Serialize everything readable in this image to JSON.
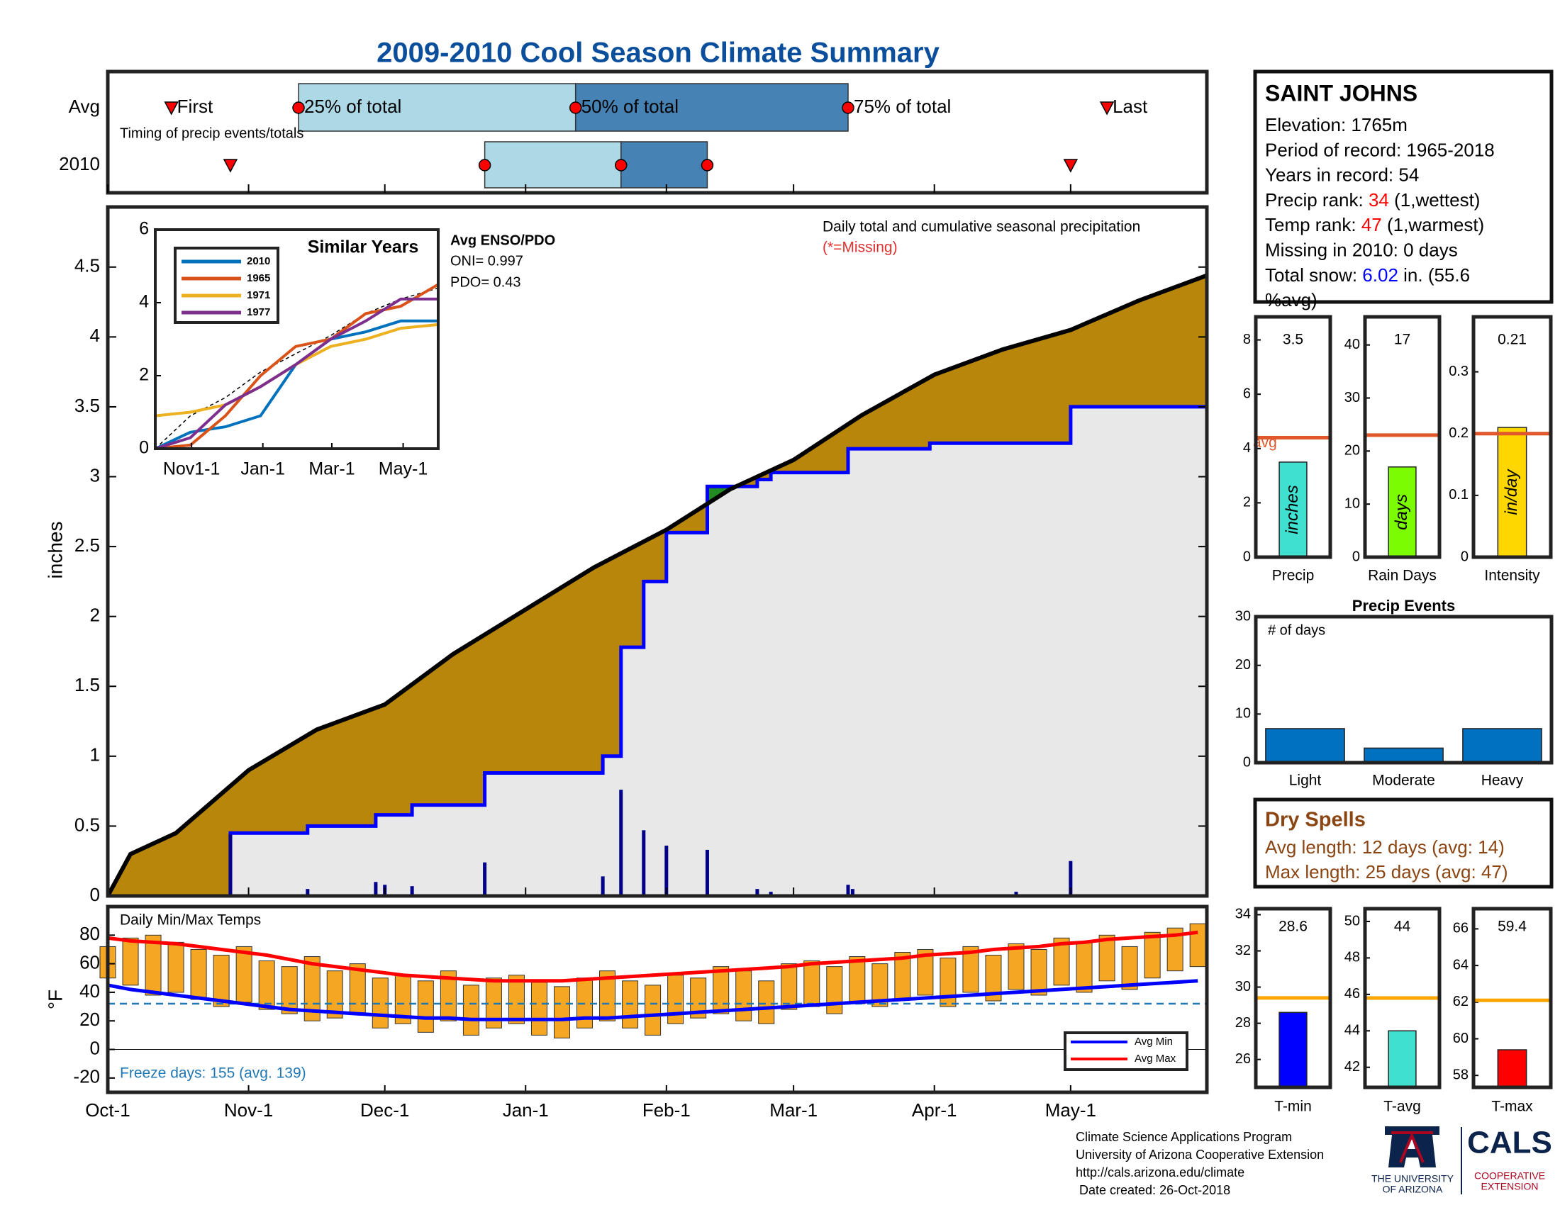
{
  "title": "2009-2010 Cool Season Climate Summary",
  "chart_data": [
    {
      "type": "timing",
      "note": "Timing of precip events/totals",
      "xlim": [
        0,
        242
      ],
      "labels": {
        "first": "First",
        "p25": "25% of total",
        "p50": "50% of total",
        "p75": "75% of total",
        "last": "Last"
      },
      "colors": [
        "#add8e6",
        "#4682b4"
      ],
      "marker_color": "#ff0000",
      "rows": [
        {
          "name": "Avg",
          "first": 14,
          "p25": 42,
          "p50": 103,
          "p75": 163,
          "last": 220
        },
        {
          "name": "2010",
          "first": 27,
          "p25": 83,
          "p50": 113,
          "p75": 132,
          "last": 212
        }
      ]
    },
    {
      "type": "area",
      "title": "Daily total and cumulative seasonal precipitation",
      "note": "(*=Missing)",
      "ylabel": "inches",
      "xlim": [
        0,
        242
      ],
      "ylim": [
        0,
        4.93
      ],
      "yticks": [
        0,
        0.5,
        1,
        1.5,
        2,
        2.5,
        3,
        3.5,
        4,
        4.5
      ],
      "enso": {
        "title": "Avg ENSO/PDO",
        "oni": "ONI= 0.997",
        "pdo": "PDO= 0.43"
      },
      "avg_cumulative": {
        "color": "#b8860b",
        "x": [
          0,
          5,
          15,
          31,
          46,
          61,
          76,
          92,
          107,
          123,
          137,
          151,
          166,
          182,
          197,
          212,
          227,
          242
        ],
        "values": [
          0,
          0.3,
          0.45,
          0.9,
          1.19,
          1.37,
          1.73,
          2.05,
          2.35,
          2.62,
          2.91,
          3.12,
          3.44,
          3.73,
          3.91,
          4.05,
          4.26,
          4.44
        ]
      },
      "cumulative_2010": {
        "color": "#e8e8e8",
        "line_color": "#0000ff",
        "excess_color": "#228b22",
        "x": [
          0,
          27,
          44,
          59,
          67,
          83,
          109,
          113,
          118,
          123,
          132,
          143,
          146,
          163,
          181,
          212
        ],
        "values": [
          0,
          0.45,
          0.5,
          0.58,
          0.65,
          0.88,
          1.0,
          1.78,
          2.25,
          2.6,
          2.93,
          2.98,
          3.03,
          3.2,
          3.24,
          3.5
        ]
      },
      "daily": {
        "color": "#00008b",
        "x": [
          27,
          44,
          59,
          61,
          67,
          83,
          109,
          113,
          118,
          123,
          132,
          143,
          146,
          163,
          164,
          200,
          212
        ],
        "values": [
          0.44,
          0.05,
          0.1,
          0.08,
          0.07,
          0.24,
          0.14,
          0.76,
          0.47,
          0.36,
          0.33,
          0.05,
          0.03,
          0.08,
          0.05,
          0.03,
          0.25
        ]
      }
    },
    {
      "type": "line",
      "title": "Similar Years",
      "xlim": [
        0,
        242
      ],
      "ylim": [
        0,
        6
      ],
      "yticks": [
        0,
        2,
        4,
        6
      ],
      "xticks": [
        {
          "value": 31,
          "label": "Nov1-1"
        },
        {
          "value": 92,
          "label": "Jan-1"
        },
        {
          "value": 151,
          "label": "Mar-1"
        },
        {
          "value": 212,
          "label": "May-1"
        }
      ],
      "x": [
        0,
        30,
        60,
        90,
        120,
        150,
        180,
        210,
        242
      ],
      "average": {
        "color": "#000000",
        "values": [
          0,
          0.9,
          1.4,
          2.1,
          2.6,
          3.1,
          3.7,
          4.1,
          4.4
        ]
      },
      "series": [
        {
          "name": "2010",
          "color": "#0072bd",
          "values": [
            0,
            0.45,
            0.6,
            0.9,
            2.3,
            3.0,
            3.2,
            3.5,
            3.5
          ]
        },
        {
          "name": "1965",
          "color": "#d95319",
          "values": [
            0,
            0.1,
            0.9,
            2.0,
            2.8,
            3.0,
            3.7,
            3.9,
            4.5
          ]
        },
        {
          "name": "1971",
          "color": "#edb120",
          "values": [
            0.9,
            1.0,
            1.2,
            1.7,
            2.3,
            2.8,
            3.0,
            3.3,
            3.4
          ]
        },
        {
          "name": "1977",
          "color": "#7e2f8e",
          "values": [
            0,
            0.3,
            1.2,
            1.7,
            2.3,
            3.0,
            3.5,
            4.1,
            4.1
          ]
        }
      ]
    },
    {
      "type": "range_bar",
      "title": "Daily Min/Max Temps",
      "ylabel": "°F",
      "note": "Freeze days: 155 (avg. 139)",
      "xlim": [
        0,
        242
      ],
      "ylim": [
        -30,
        100
      ],
      "yticks": [
        -20,
        0,
        20,
        40,
        60,
        80
      ],
      "freeze": 32,
      "color": "#f5a623",
      "xticks": [
        {
          "value": 0,
          "label": "Oct-1"
        },
        {
          "value": 31,
          "label": "Nov-1"
        },
        {
          "value": 61,
          "label": "Dec-1"
        },
        {
          "value": 92,
          "label": "Jan-1"
        },
        {
          "value": 123,
          "label": "Feb-1"
        },
        {
          "value": 151,
          "label": "Mar-1"
        },
        {
          "value": 182,
          "label": "Apr-1"
        },
        {
          "value": 212,
          "label": "May-1"
        }
      ],
      "x": [
        0,
        5,
        10,
        15,
        20,
        25,
        30,
        35,
        40,
        45,
        50,
        55,
        60,
        65,
        70,
        75,
        80,
        85,
        90,
        95,
        100,
        105,
        110,
        115,
        120,
        125,
        130,
        135,
        140,
        145,
        150,
        155,
        160,
        165,
        170,
        175,
        180,
        185,
        190,
        195,
        200,
        205,
        210,
        215,
        220,
        225,
        230,
        235,
        240
      ],
      "max": [
        72,
        78,
        80,
        75,
        70,
        66,
        72,
        62,
        58,
        65,
        55,
        60,
        50,
        52,
        48,
        55,
        45,
        50,
        52,
        47,
        44,
        50,
        55,
        48,
        45,
        52,
        50,
        58,
        55,
        48,
        60,
        62,
        58,
        65,
        60,
        68,
        70,
        64,
        72,
        66,
        74,
        70,
        78,
        75,
        80,
        72,
        82,
        85,
        88
      ],
      "min": [
        50,
        45,
        38,
        40,
        35,
        30,
        33,
        28,
        25,
        20,
        22,
        25,
        15,
        18,
        12,
        20,
        10,
        15,
        18,
        10,
        8,
        15,
        20,
        15,
        10,
        18,
        22,
        25,
        20,
        18,
        28,
        30,
        25,
        32,
        30,
        35,
        38,
        30,
        40,
        34,
        42,
        38,
        45,
        40,
        48,
        42,
        50,
        55,
        58
      ],
      "series": [
        {
          "name": "Avg Min",
          "color": "#0000ff",
          "values": [
            45,
            42,
            40,
            38,
            36,
            34,
            32,
            30,
            28,
            27,
            26,
            25,
            24,
            23,
            22,
            22,
            21,
            21,
            21,
            21,
            21,
            22,
            22,
            23,
            24,
            25,
            26,
            27,
            28,
            29,
            30,
            31,
            32,
            33,
            34,
            35,
            36,
            37,
            38,
            39,
            40,
            41,
            42,
            43,
            44,
            45,
            46,
            47,
            48
          ]
        },
        {
          "name": "Avg Max",
          "color": "#ff0000",
          "values": [
            78,
            76,
            75,
            74,
            72,
            70,
            68,
            66,
            63,
            60,
            58,
            56,
            54,
            52,
            51,
            50,
            49,
            48,
            48,
            48,
            48,
            49,
            50,
            51,
            52,
            53,
            54,
            55,
            56,
            57,
            58,
            60,
            61,
            62,
            63,
            64,
            66,
            67,
            68,
            70,
            71,
            72,
            74,
            75,
            77,
            78,
            79,
            80,
            82
          ]
        }
      ]
    },
    {
      "type": "bar",
      "categories": [
        "Precip"
      ],
      "values": [
        3.5
      ],
      "bar_label": "inches",
      "avg": 4.4,
      "avg_label": "avg",
      "color": "#40e0d0",
      "avg_color": "#e0572a",
      "ylim": [
        0,
        8.85
      ],
      "yticks": [
        0,
        2,
        4,
        6,
        8
      ]
    },
    {
      "type": "bar",
      "categories": [
        "Rain Days"
      ],
      "values": [
        17
      ],
      "bar_label": "days",
      "avg": 23,
      "color": "#7cfc00",
      "avg_color": "#e0572a",
      "ylim": [
        0,
        45.3
      ],
      "yticks": [
        0,
        10,
        20,
        30,
        40
      ]
    },
    {
      "type": "bar",
      "categories": [
        "Intensity"
      ],
      "values": [
        0.21
      ],
      "bar_label": "in/day",
      "avg": 0.2,
      "color": "#ffd700",
      "avg_color": "#e0572a",
      "ylim": [
        0,
        0.389
      ],
      "yticks": [
        0,
        0.1,
        0.2,
        0.3
      ]
    },
    {
      "type": "bar",
      "title": "Precip Events",
      "note": "# of days",
      "categories": [
        "Light",
        "Moderate",
        "Heavy"
      ],
      "values": [
        7,
        3,
        7
      ],
      "color": "#0070c0",
      "ylim": [
        0,
        30
      ],
      "yticks": [
        0,
        10,
        20,
        30
      ]
    },
    {
      "type": "bar",
      "categories": [
        "T-min"
      ],
      "values": [
        28.6
      ],
      "avg": 29.4,
      "color": "#0000ff",
      "avg_color": "#ffa500",
      "ylim": [
        24.46,
        34.33
      ],
      "yticks": [
        26,
        28,
        30,
        32,
        34
      ]
    },
    {
      "type": "bar",
      "categories": [
        "T-avg"
      ],
      "values": [
        44
      ],
      "avg": 45.8,
      "color": "#40e0d0",
      "avg_color": "#ffa500",
      "ylim": [
        40.9,
        50.7
      ],
      "yticks": [
        42,
        44,
        46,
        48,
        50
      ]
    },
    {
      "type": "bar",
      "categories": [
        "T-max"
      ],
      "values": [
        59.4
      ],
      "avg": 62.1,
      "color": "#ff0000",
      "avg_color": "#ffa500",
      "ylim": [
        57.35,
        67.1
      ],
      "yticks": [
        58,
        60,
        62,
        64,
        66
      ]
    }
  ],
  "info": {
    "title": "SAINT JOHNS",
    "lines": [
      [
        {
          "text": "Elevation: 1765m"
        }
      ],
      [
        {
          "text": "Period of record: 1965-2018"
        }
      ],
      [
        {
          "text": "Years in record: 54"
        }
      ],
      [
        {
          "text": "Precip rank: "
        },
        {
          "text": "34",
          "color": "#ff0000"
        },
        {
          "text": " (1,wettest)"
        }
      ],
      [
        {
          "text": "Temp rank: "
        },
        {
          "text": "47",
          "color": "#ff0000"
        },
        {
          "text": " (1,warmest)"
        }
      ],
      [
        {
          "text": "Missing in 2010: 0 days"
        }
      ],
      [
        {
          "text": "Total snow: "
        },
        {
          "text": "6.02",
          "color": "#0000ff"
        },
        {
          "text": " in. (55.6"
        }
      ],
      [
        {
          "text": "%avg)"
        }
      ]
    ]
  },
  "dry_spells": {
    "title": "Dry Spells",
    "color": "#8b4513",
    "lines": [
      "Avg length: 12 days (avg: 14)",
      "Max length: 25 days (avg: 47)"
    ]
  },
  "footer": [
    "Climate Science Applications Program",
    "University of Arizona Cooperative Extension",
    "http://cals.arizona.edu/climate",
    " Date created: 26-Oct-2018"
  ],
  "logos": {
    "ua": [
      "THE UNIVERSITY",
      "OF ARIZONA"
    ],
    "cals": "CALS",
    "coop": [
      "COOPERATIVE",
      "EXTENSION"
    ]
  }
}
